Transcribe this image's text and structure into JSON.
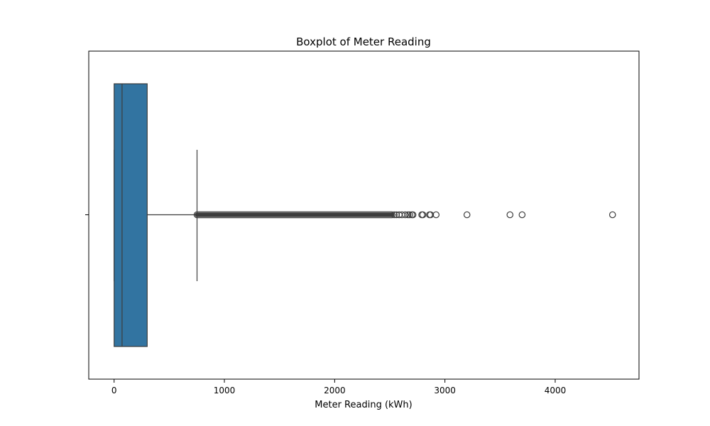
{
  "chart_data": {
    "type": "boxplot",
    "title": "Boxplot of Meter Reading",
    "xlabel": "Meter Reading (kWh)",
    "ylabel": "",
    "xlim": [
      -230,
      4760
    ],
    "xticks": [
      0,
      1000,
      2000,
      3000,
      4000
    ],
    "xtick_labels": [
      "0",
      "1000",
      "2000",
      "3000",
      "4000"
    ],
    "grid": false,
    "box": {
      "min": 0,
      "q1": 0,
      "median": 72,
      "q3": 300,
      "whisker_low": 0,
      "whisker_high": 752,
      "color": "#3274a1",
      "edge_color": "#3d3d3d"
    },
    "outlier_band": [
      752,
      2520
    ],
    "outliers": [
      2540,
      2560,
      2585,
      2610,
      2640,
      2665,
      2680,
      2700,
      2710,
      2790,
      2800,
      2860,
      2870,
      2920,
      3200,
      3590,
      3700,
      4520
    ]
  }
}
